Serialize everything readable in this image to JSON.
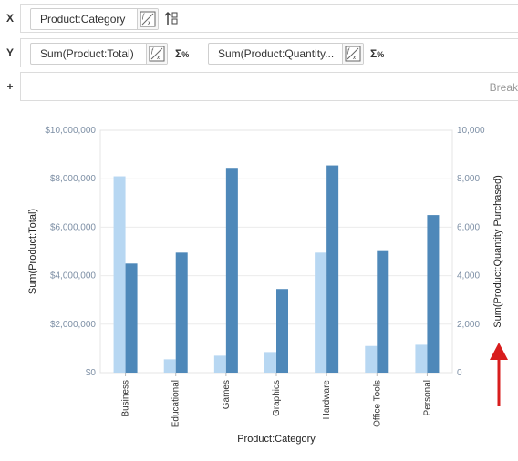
{
  "shelves": {
    "x": {
      "letter": "X",
      "field": "Product:Category"
    },
    "y": {
      "letter": "Y",
      "fields": [
        "Sum(Product:Total)",
        "Sum(Product:Quantity..."
      ]
    },
    "add": {
      "letter": "+",
      "placeholder": "Break"
    }
  },
  "icons": {
    "formula": "formula-fx-icon",
    "sort": "sort-icon",
    "percent": "sum-percent-icon",
    "arrow": "up-arrow-icon"
  },
  "colors": {
    "series1": "#b7d7f2",
    "series2": "#4e88b9",
    "arrow": "#d81d1d"
  },
  "chart_data": {
    "type": "bar",
    "categories": [
      "Business",
      "Educational",
      "Games",
      "Graphics",
      "Hardware",
      "Office Tools",
      "Personal"
    ],
    "series": [
      {
        "name": "Sum(Product:Total)",
        "axis": "left",
        "values": [
          8100000,
          550000,
          700000,
          850000,
          4950000,
          1100000,
          1150000
        ]
      },
      {
        "name": "Sum(Product:Quantity Purchased)",
        "axis": "right",
        "values": [
          4500,
          4950,
          8450,
          3450,
          8550,
          5050,
          6500
        ]
      }
    ],
    "xlabel": "Product:Category",
    "ylabel": "Sum(Product:Total)",
    "y2label": "Sum(Product:Quantity Purchased)",
    "ylim": [
      0,
      10000000
    ],
    "y2lim": [
      0,
      10000
    ],
    "yticks": [
      "$0",
      "$2,000,000",
      "$4,000,000",
      "$6,000,000",
      "$8,000,000",
      "$10,000,000"
    ],
    "y2ticks": [
      "0",
      "2,000",
      "4,000",
      "6,000",
      "8,000",
      "10,000"
    ],
    "grid": true,
    "legend": "none"
  }
}
